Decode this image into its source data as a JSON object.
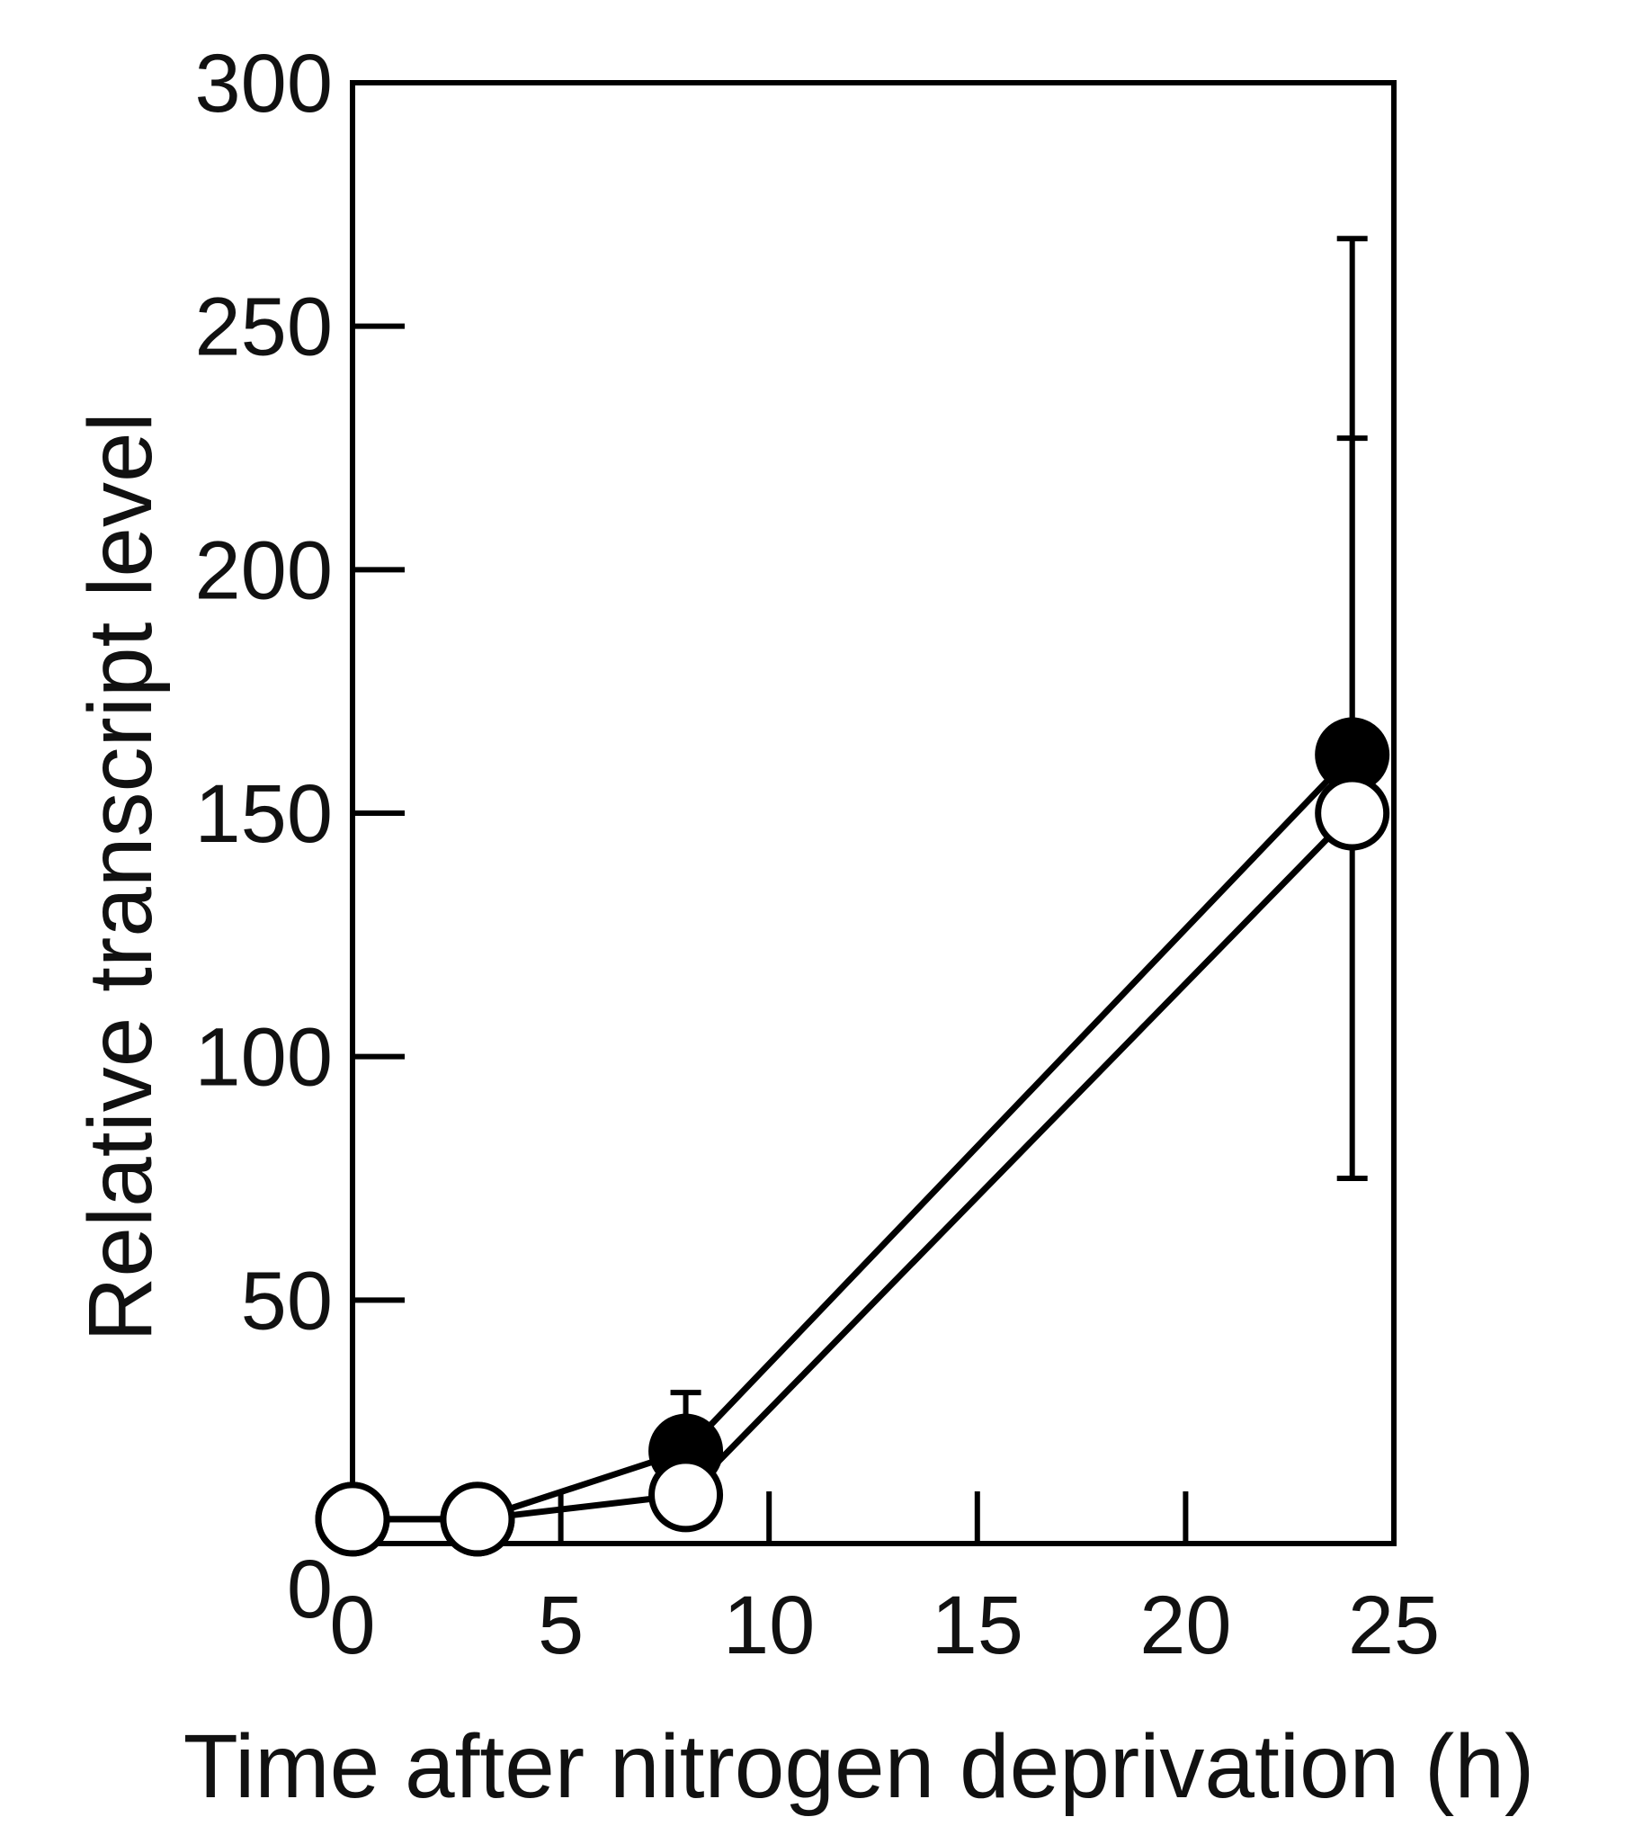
{
  "chart_data": {
    "type": "line",
    "title": "",
    "xlabel": "Time after nitrogen deprivation (h)",
    "ylabel": "Relative transcript level",
    "xlim": [
      0,
      25
    ],
    "ylim": [
      0,
      300
    ],
    "xticks": [
      0,
      5,
      10,
      15,
      20,
      25
    ],
    "yticks": [
      0,
      50,
      100,
      150,
      200,
      250,
      300
    ],
    "grid": false,
    "legend": "none",
    "series": [
      {
        "marker": "filled-circle",
        "color": "#000000",
        "x": [
          0,
          3,
          8,
          24
        ],
        "y": [
          5,
          5,
          19,
          162
        ],
        "err_plus": [
          0,
          3,
          12,
          106
        ],
        "err_minus": [
          0,
          0,
          0,
          0
        ]
      },
      {
        "marker": "open-circle",
        "color": "#000000",
        "x": [
          0,
          3,
          8,
          24
        ],
        "y": [
          5,
          5,
          10,
          150
        ],
        "err_plus": [
          0,
          0,
          0,
          77
        ],
        "err_minus": [
          0,
          0,
          0,
          75
        ]
      }
    ]
  }
}
